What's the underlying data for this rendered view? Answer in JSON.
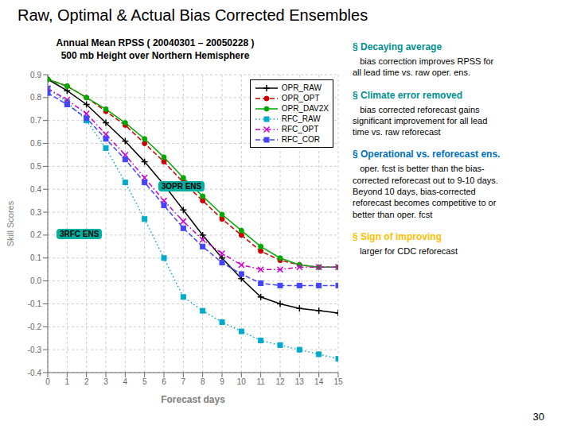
{
  "chart_data": {
    "type": "line",
    "title": "Raw, Optimal & Actual Bias Corrected Ensembles",
    "subtitle": [
      "Annual Mean RPSS ( 20040301 – 20050228 )",
      "500 mb Height over Northern Hemisphere"
    ],
    "xlabel": "Forecast days",
    "ylabel": "Skill Scores",
    "x": [
      0,
      1,
      2,
      3,
      4,
      5,
      6,
      7,
      8,
      9,
      10,
      11,
      12,
      13,
      14,
      15
    ],
    "xlim": [
      0,
      15
    ],
    "ylim": [
      -0.4,
      0.9
    ],
    "xticks": [
      0,
      1,
      2,
      3,
      4,
      5,
      6,
      7,
      8,
      9,
      10,
      11,
      12,
      13,
      14,
      15
    ],
    "yticks": [
      -0.4,
      -0.3,
      -0.2,
      -0.1,
      {
        "value": 0,
        "label": "0.0"
      },
      0.1,
      0.2,
      0.3,
      0.4,
      0.5,
      0.6,
      0.7,
      0.8,
      0.9
    ],
    "grid": true,
    "legend": "upper right",
    "series": [
      {
        "name": "OPR_RAW",
        "color": "#000000",
        "line_style": "solid",
        "marker": "plus",
        "values": [
          0.88,
          0.83,
          0.77,
          0.69,
          0.61,
          0.52,
          0.42,
          0.31,
          0.2,
          0.1,
          0.01,
          -0.07,
          -0.1,
          -0.12,
          -0.13,
          -0.14
        ]
      },
      {
        "name": "OPR_OPT",
        "color": "#cc0000",
        "line_style": "dashed",
        "marker": "circle",
        "values": [
          0.88,
          0.85,
          0.8,
          0.74,
          0.68,
          0.6,
          0.52,
          0.43,
          0.35,
          0.27,
          0.2,
          0.13,
          0.09,
          0.07,
          0.06,
          0.06
        ]
      },
      {
        "name": "OPR_DAV2X",
        "color": "#00aa00",
        "line_style": "solid",
        "marker": "circle",
        "values": [
          0.88,
          0.85,
          0.8,
          0.75,
          0.69,
          0.62,
          0.54,
          0.45,
          0.37,
          0.29,
          0.22,
          0.15,
          0.1,
          0.07,
          0.06,
          0.06
        ]
      },
      {
        "name": "RFC_RAW",
        "color": "#00aacc",
        "line_style": "dotted",
        "marker": "square",
        "values": [
          0.84,
          0.78,
          0.7,
          0.58,
          0.43,
          0.27,
          0.1,
          -0.07,
          -0.13,
          -0.18,
          -0.22,
          -0.26,
          -0.28,
          -0.3,
          -0.32,
          -0.34
        ]
      },
      {
        "name": "RFC_OPT",
        "color": "#cc00cc",
        "line_style": "dashdot",
        "marker": "x",
        "values": [
          0.84,
          0.79,
          0.73,
          0.64,
          0.55,
          0.45,
          0.35,
          0.26,
          0.18,
          0.12,
          0.07,
          0.05,
          0.05,
          0.06,
          0.06,
          0.06
        ]
      },
      {
        "name": "RFC_COR",
        "color": "#4444ff",
        "line_style": "dashed",
        "marker": "square",
        "values": [
          0.82,
          0.77,
          0.71,
          0.62,
          0.53,
          0.43,
          0.33,
          0.23,
          0.15,
          0.08,
          0.03,
          -0.01,
          -0.02,
          -0.02,
          -0.02,
          -0.02
        ]
      }
    ],
    "annotations": [
      {
        "text": "3OPR ENS",
        "color": "#00b0a0"
      },
      {
        "text": "3RFC ENS",
        "color": "#00b0a0"
      },
      {
        "text": "§ Decaying average",
        "color": "#009090"
      },
      {
        "text": "   bias correction improves RPSS for\nall lead time vs. raw oper. ens."
      },
      {
        "text": "§ Climate error removed",
        "color": "#009090"
      },
      {
        "text": "   bias corrected reforecast gains\nsignificant improvement for all lead\ntime vs. raw reforecast"
      },
      {
        "text": "§ Operational vs. reforecast ens.",
        "color": "#0070c0"
      },
      {
        "text": "   oper. fcst is better than the bias-\ncorrected reforecast out to 9-10 days.\nBeyond 10 days, bias-corrected\nreforecast becomes competitive to or\nbetter than oper. fcst"
      },
      {
        "text": "§ Sign of improving",
        "color": "#ffc000"
      },
      {
        "text": "   larger for CDC reforecast"
      },
      {
        "text": "30"
      }
    ]
  }
}
